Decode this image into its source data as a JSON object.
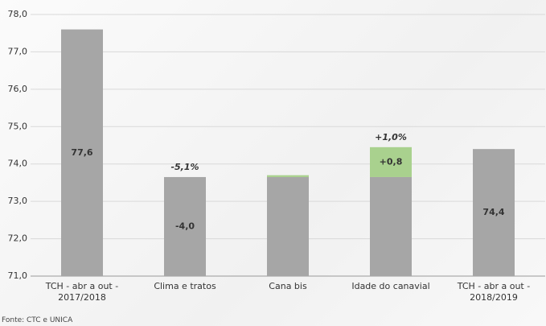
{
  "chart_data": {
    "type": "waterfall",
    "categories": [
      "TCH - abr a out - 2017/2018",
      "Clima e tratos",
      "Cana bis",
      "Idade do canavial",
      "TCH - abr a out - 2018/2019"
    ],
    "series": [
      {
        "color": "#a6a6a6",
        "values": [
          77.6,
          73.65,
          73.65,
          73.65,
          74.4
        ],
        "value_labels": [
          "77,6",
          null,
          null,
          null,
          "74,4"
        ]
      },
      {
        "color": "#a9d18e",
        "values": [
          null,
          -4.0,
          0.05,
          0.8,
          null
        ],
        "value_labels": [
          null,
          "-4,0",
          null,
          "+0,8",
          null
        ]
      }
    ],
    "percent_changes": {
      "values": [
        null,
        -5.1,
        null,
        1.0,
        null
      ],
      "labels": [
        null,
        "-5,1%",
        null,
        "+1,0%",
        null
      ],
      "colors": [
        null,
        "#e31a1c",
        null,
        "#1f1fd6",
        null
      ]
    },
    "ylim": [
      71,
      78
    ],
    "yticks": [
      {
        "value": 71,
        "label": "71,0"
      },
      {
        "value": 72,
        "label": "72,0"
      },
      {
        "value": 73,
        "label": "73,0"
      },
      {
        "value": 74,
        "label": "74,0"
      },
      {
        "value": 75,
        "label": "75,0"
      },
      {
        "value": 76,
        "label": "76,0"
      },
      {
        "value": 77,
        "label": "77,0"
      },
      {
        "value": 78,
        "label": "78,0"
      }
    ],
    "grid": true,
    "source": "Fonte: CTC e UNICA"
  }
}
